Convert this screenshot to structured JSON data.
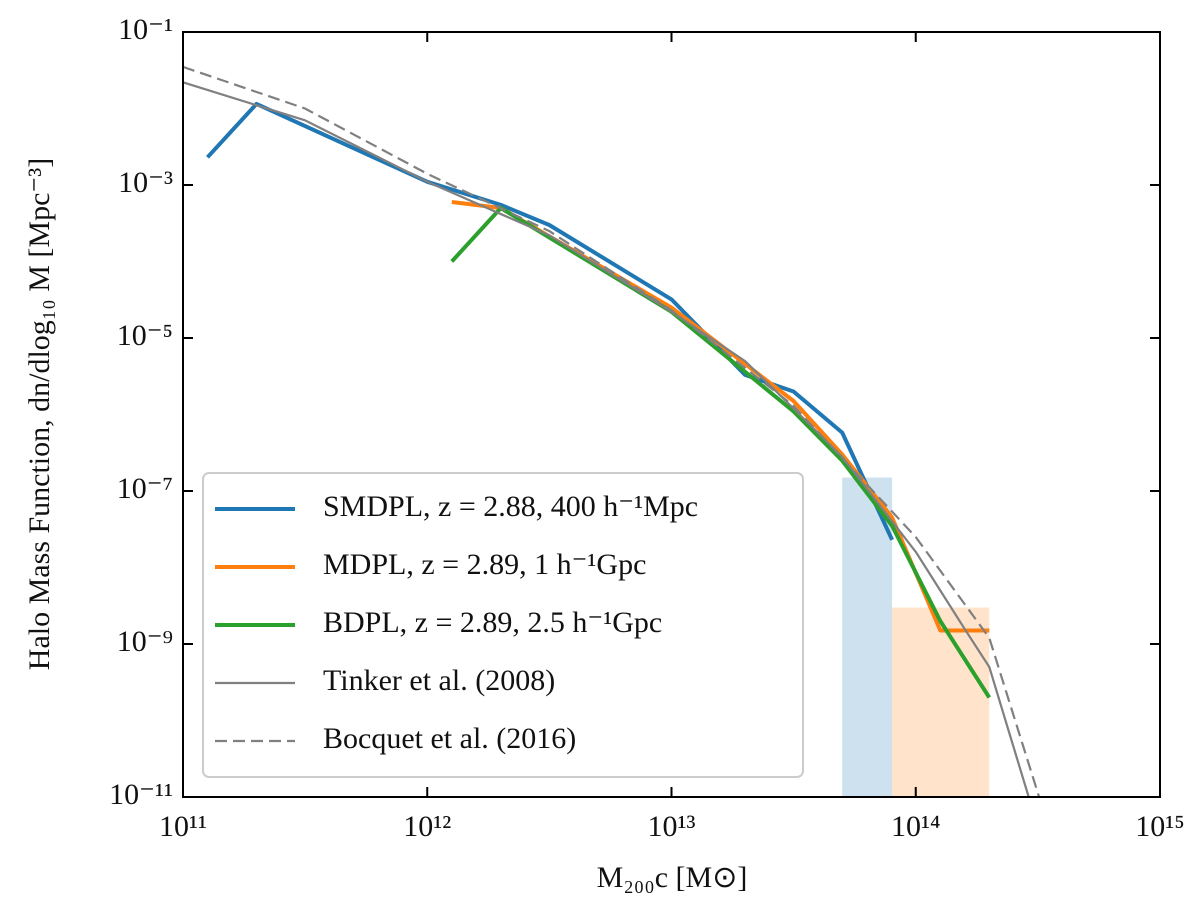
{
  "chart_data": {
    "type": "line",
    "xlabel": "M₂₀₀c [M⊙]",
    "ylabel": "Halo Mass Function, dn/dlog₁₀ M [Mpc⁻³]",
    "xscale": "log",
    "yscale": "log",
    "xlim": [
      100000000000.0,
      1000000000000000.0
    ],
    "ylim": [
      1e-11,
      0.1
    ],
    "xticks": [
      {
        "value": 100000000000.0,
        "label": "10¹¹"
      },
      {
        "value": 1000000000000.0,
        "label": "10¹²"
      },
      {
        "value": 10000000000000.0,
        "label": "10¹³"
      },
      {
        "value": 100000000000000.0,
        "label": "10¹⁴"
      },
      {
        "value": 1000000000000000.0,
        "label": "10¹⁵"
      }
    ],
    "yticks": [
      {
        "value": 1e-11,
        "label": "10⁻¹¹"
      },
      {
        "value": 1e-09,
        "label": "10⁻⁹"
      },
      {
        "value": 1e-07,
        "label": "10⁻⁷"
      },
      {
        "value": 1e-05,
        "label": "10⁻⁵"
      },
      {
        "value": 0.001,
        "label": "10⁻³"
      },
      {
        "value": 0.1,
        "label": "10⁻¹"
      }
    ],
    "legend": "lower left",
    "shaded": [
      {
        "x": [
          50000000000000.0,
          80000000000000.0
        ],
        "y": [
          1e-11,
          1.5e-07
        ],
        "color": "#1f77b4"
      },
      {
        "x": [
          80000000000000.0,
          200000000000000.0
        ],
        "y": [
          1e-11,
          3e-09
        ],
        "color": "#ff7f0e"
      }
    ],
    "series": [
      {
        "name": "SMDPL, z = 2.88, 400 h⁻¹Mpc",
        "color": "#1f77b4",
        "x": [
          126000000000.0,
          200000000000.0,
          1000000000000.0,
          2000000000000.0,
          3160000000000.0,
          10000000000000.0,
          20000000000000.0,
          31600000000000.0,
          50000000000000.0,
          80000000000000.0
        ],
        "values": [
          0.0023,
          0.0115,
          0.0011,
          0.00055,
          0.0003,
          3.2e-05,
          3.3e-06,
          2e-06,
          5.8e-07,
          2.3e-08
        ]
      },
      {
        "name": "MDPL, z = 2.89, 1 h⁻¹Gpc",
        "color": "#ff7f0e",
        "x": [
          1260000000000.0,
          2000000000000.0,
          10000000000000.0,
          31600000000000.0,
          50000000000000.0,
          80000000000000.0,
          126000000000000.0,
          200000000000000.0
        ],
        "values": [
          0.0006,
          0.0005,
          2.5e-05,
          1.5e-06,
          3e-07,
          4.5e-08,
          1.5e-09,
          1.5e-09
        ]
      },
      {
        "name": "BDPL, z = 2.89, 2.5 h⁻¹Gpc",
        "color": "#2ca02c",
        "x": [
          1260000000000.0,
          2000000000000.0,
          10000000000000.0,
          31600000000000.0,
          50000000000000.0,
          80000000000000.0,
          126000000000000.0,
          200000000000000.0
        ],
        "values": [
          0.0001,
          0.0005,
          2.2e-05,
          1.1e-06,
          2.5e-07,
          3.5e-08,
          2e-09,
          2e-10
        ]
      },
      {
        "name": "Tinker et al. (2008)",
        "color": "#808080",
        "thin": true,
        "x": [
          100000000000.0,
          316000000000.0,
          1000000000000.0,
          3160000000000.0,
          10000000000000.0,
          20000000000000.0,
          31600000000000.0,
          50000000000000.0,
          100000000000000.0,
          158000000000000.0,
          200000000000000.0,
          290000000000000.0
        ],
        "values": [
          0.022,
          0.007,
          0.0011,
          0.00022,
          2.2e-05,
          5e-06,
          1.2e-06,
          2.8e-07,
          1.6e-08,
          1.6e-09,
          5e-10,
          1e-11
        ]
      },
      {
        "name": "Bocquet et al. (2016)",
        "color": "#808080",
        "thin": true,
        "dashed": true,
        "x": [
          100000000000.0,
          316000000000.0,
          1000000000000.0,
          3160000000000.0,
          10000000000000.0,
          31600000000000.0,
          100000000000000.0,
          200000000000000.0,
          320000000000000.0
        ],
        "values": [
          0.035,
          0.01,
          0.0014,
          0.00025,
          2.3e-05,
          1.3e-06,
          2.5e-08,
          1.2e-09,
          1e-11
        ]
      }
    ]
  }
}
